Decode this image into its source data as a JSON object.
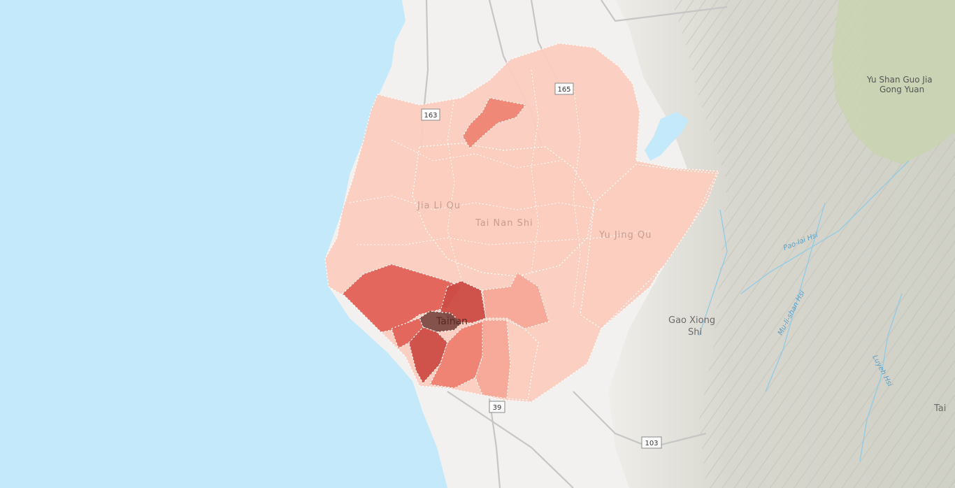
{
  "map": {
    "place_labels": {
      "tainan_city": "Tainan",
      "jiali": "Jia Li Qu",
      "tainan_shi": "Tai Nan Shi",
      "yujing": "Yu Jing Qu",
      "kaohsiung_line1": "Gao Xiong",
      "kaohsiung_line2": "Shi",
      "yushan_line1": "Yu Shan Guo Jia",
      "yushan_line2": "Gong Yuan",
      "tai_edge": "Tai"
    },
    "river_labels": {
      "laonong": "Pao-lai Hsi",
      "zhouping": "Mu-li-shan Hsi",
      "luyeh": "Luyeh Hsi"
    },
    "road_shields": [
      "163",
      "165",
      "39",
      "103"
    ],
    "choropleth_colors": {
      "lowest": "#fbcdbf",
      "low": "#f7a898",
      "mid": "#ee8070",
      "high": "#e26157",
      "higher": "#cc4c44",
      "highest": "#7d4a44"
    },
    "colors": {
      "water": "#c3e9fb",
      "land": "#f2f1ef",
      "mountain": "#dcdcd4",
      "park": "#c9d3b0",
      "boundary": "#ffffff"
    }
  }
}
